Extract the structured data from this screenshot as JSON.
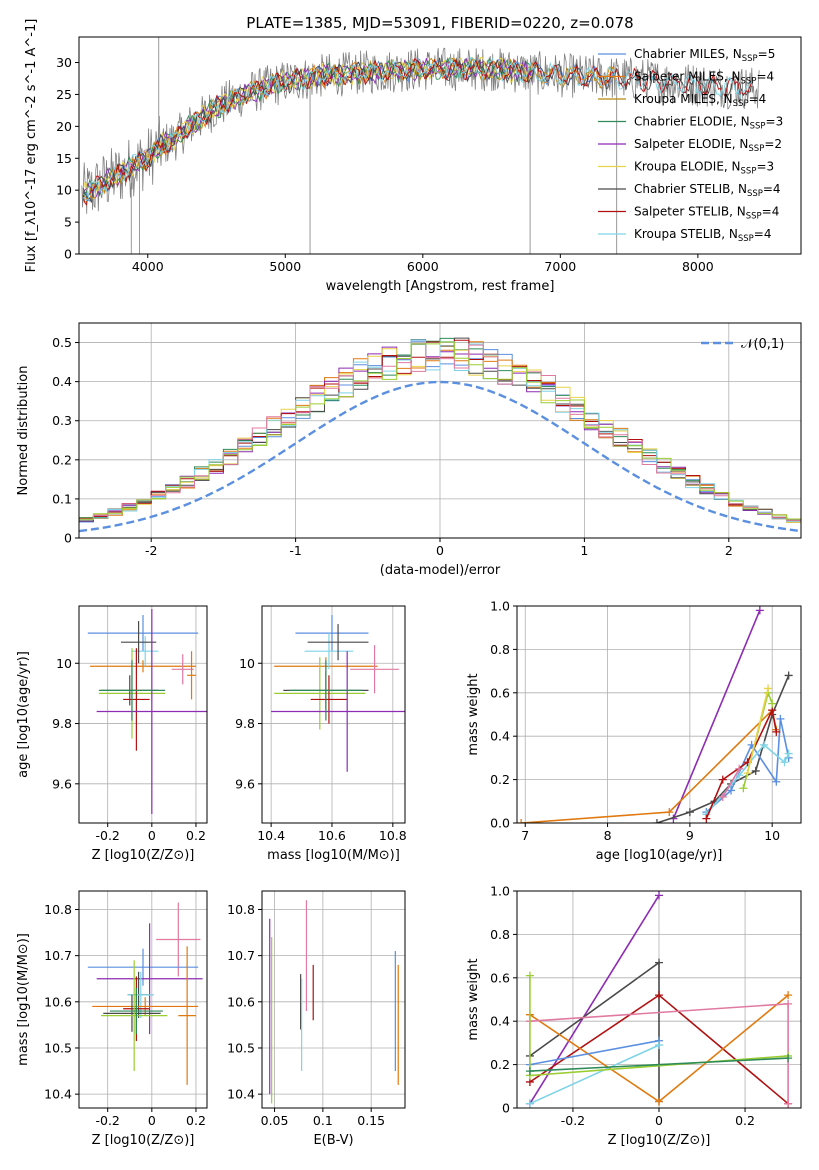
{
  "title": "PLATE=1385, MJD=53091, FIBERID=0220, z=0.078",
  "colors": {
    "Chabrier MILES": "#5b8fe0",
    "Salpeter MILES": "#e07a10",
    "Kroupa MILES": "#b8860b",
    "Chabrier ELODIE": "#2e8b57",
    "Salpeter ELODIE": "#8e2bb3",
    "Kroupa ELODIE": "#e8d24a",
    "Chabrier STELIB": "#4a4a4a",
    "Salpeter STELIB": "#b01010",
    "Kroupa STELIB": "#7fd3e6",
    "extra_pink": "#e07aa0",
    "extra_lime": "#9acd32",
    "data_gray": "#808080",
    "gaussian": "#5b8fe0"
  },
  "chart_data": [
    {
      "id": "spectrum",
      "type": "line",
      "title": "PLATE=1385, MJD=53091, FIBERID=0220, z=0.078",
      "xlabel": "wavelength [Angstrom, rest frame]",
      "ylabel": "Flux [f_λ10^-17 erg cm^-2 s^-1 A^-1]",
      "xlim": [
        3500,
        8750
      ],
      "ylim": [
        0,
        34
      ],
      "xticks": [
        4000,
        5000,
        6000,
        7000,
        8000
      ],
      "yticks": [
        0,
        5,
        10,
        15,
        20,
        25,
        30
      ],
      "grid": false,
      "legend_position": "upper right",
      "legend": [
        "Chabrier MILES, N_SSP=5",
        "Salpeter MILES, N_SSP=4",
        "Kroupa MILES, N_SSP=4",
        "Chabrier ELODIE, N_SSP=3",
        "Salpeter ELODIE, N_SSP=2",
        "Kroupa ELODIE, N_SSP=3",
        "Chabrier STELIB, N_SSP=4",
        "Salpeter STELIB, N_SSP=4",
        "Kroupa STELIB, N_SSP=4"
      ],
      "continuum_x": [
        3500,
        3600,
        3700,
        3800,
        3900,
        4000,
        4100,
        4200,
        4300,
        4400,
        4500,
        4700,
        5000,
        5300,
        5600,
        6000,
        6500,
        7000,
        7500,
        8000,
        8400
      ],
      "continuum_y": [
        9,
        10,
        11.5,
        12.5,
        14,
        15,
        17,
        18,
        20,
        21.5,
        23,
        25,
        27,
        28,
        28.5,
        29,
        29,
        28,
        27.5,
        26.5,
        26
      ]
    },
    {
      "id": "residuals",
      "type": "histogram",
      "xlabel": "(data-model)/error",
      "ylabel": "Normed distribution",
      "xlim": [
        -2.5,
        2.5
      ],
      "ylim": [
        0,
        0.55
      ],
      "xticks": [
        -2,
        -1,
        0,
        1,
        2
      ],
      "yticks": [
        0.0,
        0.1,
        0.2,
        0.3,
        0.4,
        0.5
      ],
      "grid": true,
      "legend_position": "upper right",
      "legend": [
        "𝒩(0,1)"
      ],
      "bin_width": 0.1,
      "approx_peak": 0.5
    },
    {
      "id": "age_vs_Z",
      "type": "scatter",
      "xlabel": "Z [log10(Z/Z⊙)]",
      "ylabel": "age  [log10(age/yr)]",
      "xlim": [
        -0.33,
        0.25
      ],
      "ylim": [
        9.47,
        10.19
      ],
      "xticks": [
        -0.2,
        0.0,
        0.2
      ],
      "yticks": [
        9.6,
        9.8,
        10.0
      ],
      "grid": true,
      "points": [
        {
          "series": "Chabrier MILES",
          "x": -0.04,
          "y": 10.1,
          "xerr": 0.25,
          "yerr": 0.06
        },
        {
          "series": "Salpeter MILES",
          "x": -0.04,
          "y": 9.99,
          "xerr": 0.24,
          "yerr": 0.02
        },
        {
          "series": "Kroupa STELIB",
          "x": -0.03,
          "y": 10.04,
          "xerr": 0.06,
          "yerr": 0.05
        },
        {
          "series": "Chabrier STELIB",
          "x": -0.06,
          "y": 10.07,
          "xerr": 0.08,
          "yerr": 0.07
        },
        {
          "series": "extra_pink",
          "x": 0.14,
          "y": 9.98,
          "xerr": 0.05,
          "yerr": 0.05
        },
        {
          "series": "Salpeter MILES",
          "x": 0.18,
          "y": 9.96,
          "xerr": 0.02,
          "yerr": 0.08
        },
        {
          "series": "extra_lime",
          "x": -0.09,
          "y": 9.9,
          "xerr": 0.15,
          "yerr": 0.15
        },
        {
          "series": "Chabrier STELIB",
          "x": -0.1,
          "y": 9.91,
          "xerr": 0.13,
          "yerr": 0.05
        },
        {
          "series": "Salpeter STELIB",
          "x": -0.07,
          "y": 9.88,
          "xerr": 0.06,
          "yerr": 0.17
        },
        {
          "series": "Salpeter ELODIE",
          "x": 0.0,
          "y": 9.84,
          "xerr": 0.25,
          "yerr": 0.34
        },
        {
          "series": "Chabrier ELODIE",
          "x": -0.09,
          "y": 9.91,
          "xerr": 0.15,
          "yerr": 0.1
        }
      ]
    },
    {
      "id": "age_vs_mass",
      "type": "scatter",
      "xlabel": "mass [log10(M/M⊙)]",
      "ylabel": "",
      "xlim": [
        10.37,
        10.84
      ],
      "ylim": [
        9.47,
        10.19
      ],
      "xticks": [
        10.4,
        10.6,
        10.8
      ],
      "yticks": [
        9.6,
        9.8,
        10.0
      ],
      "grid": true,
      "points": [
        {
          "series": "Chabrier MILES",
          "x": 10.6,
          "y": 10.1,
          "xerr": 0.12,
          "yerr": 0.06
        },
        {
          "series": "Salpeter MILES",
          "x": 10.58,
          "y": 9.99,
          "xerr": 0.17,
          "yerr": 0.03
        },
        {
          "series": "Kroupa STELIB",
          "x": 10.59,
          "y": 10.04,
          "xerr": 0.08,
          "yerr": 0.06
        },
        {
          "series": "Chabrier STELIB",
          "x": 10.62,
          "y": 10.07,
          "xerr": 0.1,
          "yerr": 0.06
        },
        {
          "series": "extra_pink",
          "x": 10.74,
          "y": 9.98,
          "xerr": 0.08,
          "yerr": 0.08
        },
        {
          "series": "extra_lime",
          "x": 10.56,
          "y": 9.9,
          "xerr": 0.15,
          "yerr": 0.12
        },
        {
          "series": "Chabrier STELIB",
          "x": 10.58,
          "y": 9.91,
          "xerr": 0.14,
          "yerr": 0.06
        },
        {
          "series": "Salpeter STELIB",
          "x": 10.59,
          "y": 9.88,
          "xerr": 0.06,
          "yerr": 0.08
        },
        {
          "series": "Salpeter ELODIE",
          "x": 10.65,
          "y": 9.84,
          "xerr": 0.25,
          "yerr": 0.2
        },
        {
          "series": "Chabrier ELODIE",
          "x": 10.58,
          "y": 9.91,
          "xerr": 0.12,
          "yerr": 0.1
        }
      ]
    },
    {
      "id": "weight_vs_age",
      "type": "line",
      "xlabel": "age  [log10(age/yr)]",
      "ylabel": "mass weight",
      "xlim": [
        6.9,
        10.35
      ],
      "ylim": [
        0,
        1.0
      ],
      "xticks": [
        7,
        8,
        9,
        10
      ],
      "yticks": [
        0.0,
        0.2,
        0.4,
        0.6,
        0.8,
        1.0
      ],
      "grid": true,
      "series": [
        {
          "name": "Salpeter ELODIE",
          "x": [
            8.8,
            9.85
          ],
          "y": [
            0.02,
            0.98
          ]
        },
        {
          "name": "Chabrier STELIB",
          "x": [
            8.6,
            9.0,
            9.3,
            9.5,
            9.8,
            10.0,
            10.2
          ],
          "y": [
            0.0,
            0.05,
            0.1,
            0.18,
            0.24,
            0.5,
            0.68
          ]
        },
        {
          "name": "Salpeter MILES",
          "x": [
            6.95,
            8.75,
            10.0,
            10.05
          ],
          "y": [
            0.0,
            0.05,
            0.52,
            0.43
          ]
        },
        {
          "name": "Chabrier MILES",
          "x": [
            9.2,
            9.5,
            9.75,
            10.05,
            10.1,
            10.2
          ],
          "y": [
            0.05,
            0.15,
            0.36,
            0.19,
            0.48,
            0.3
          ]
        },
        {
          "name": "Kroupa STELIB",
          "x": [
            9.2,
            9.6,
            9.9,
            10.15,
            10.2
          ],
          "y": [
            0.04,
            0.22,
            0.36,
            0.28,
            0.32
          ]
        },
        {
          "name": "Salpeter STELIB",
          "x": [
            9.2,
            9.4,
            9.7,
            10.0,
            10.05
          ],
          "y": [
            0.02,
            0.2,
            0.28,
            0.52,
            0.42
          ]
        },
        {
          "name": "extra_lime",
          "x": [
            9.65,
            9.95,
            10.0
          ],
          "y": [
            0.16,
            0.6,
            0.55
          ]
        },
        {
          "name": "Kroupa ELODIE",
          "x": [
            9.7,
            9.95
          ],
          "y": [
            0.23,
            0.62
          ]
        },
        {
          "name": "extra_pink",
          "x": [
            9.4,
            9.6
          ],
          "y": [
            0.12,
            0.25
          ]
        }
      ]
    },
    {
      "id": "mass_vs_Z",
      "type": "scatter",
      "xlabel": "Z [log10(Z/Z⊙)]",
      "ylabel": "mass [log10(M/M⊙)]",
      "xlim": [
        -0.33,
        0.25
      ],
      "ylim": [
        10.37,
        10.84
      ],
      "xticks": [
        -0.2,
        0.0,
        0.2
      ],
      "yticks": [
        10.4,
        10.5,
        10.6,
        10.7,
        10.8
      ],
      "grid": true,
      "points": [
        {
          "series": "extra_pink",
          "x": 0.12,
          "y": 10.735,
          "xerr": 0.1,
          "yerr": 0.08
        },
        {
          "series": "Chabrier MILES",
          "x": -0.04,
          "y": 10.675,
          "xerr": 0.25,
          "yerr": 0.04
        },
        {
          "series": "Salpeter ELODIE",
          "x": -0.01,
          "y": 10.65,
          "xerr": 0.24,
          "yerr": 0.12
        },
        {
          "series": "Chabrier STELIB",
          "x": -0.06,
          "y": 10.615,
          "xerr": 0.05,
          "yerr": 0.05
        },
        {
          "series": "Kroupa STELIB",
          "x": -0.05,
          "y": 10.615,
          "xerr": 0.06,
          "yerr": 0.05
        },
        {
          "series": "Salpeter MILES",
          "x": -0.03,
          "y": 10.59,
          "xerr": 0.24,
          "yerr": 0.02
        },
        {
          "series": "Salpeter STELIB",
          "x": -0.07,
          "y": 10.585,
          "xerr": 0.06,
          "yerr": 0.07
        },
        {
          "series": "Chabrier STELIB",
          "x": -0.09,
          "y": 10.575,
          "xerr": 0.13,
          "yerr": 0.04
        },
        {
          "series": "extra_lime",
          "x": -0.08,
          "y": 10.57,
          "xerr": 0.15,
          "yerr": 0.12
        },
        {
          "series": "Salpeter MILES",
          "x": 0.16,
          "y": 10.57,
          "xerr": 0.04,
          "yerr": 0.15
        },
        {
          "series": "Chabrier ELODIE",
          "x": -0.07,
          "y": 10.58,
          "xerr": 0.12,
          "yerr": 0.05
        }
      ]
    },
    {
      "id": "mass_vs_ebv",
      "type": "scatter",
      "xlabel": "E(B-V)",
      "ylabel": "",
      "xlim": [
        0.037,
        0.185
      ],
      "ylim": [
        10.37,
        10.84
      ],
      "xticks": [
        0.05,
        0.1,
        0.15
      ],
      "yticks": [
        10.4,
        10.5,
        10.6,
        10.7,
        10.8
      ],
      "grid": true,
      "points": [
        {
          "series": "Salpeter ELODIE",
          "x": 0.045,
          "y": 10.59,
          "yerr": 0.19
        },
        {
          "series": "extra_lime",
          "x": 0.047,
          "y": 10.56,
          "yerr": 0.18
        },
        {
          "series": "Chabrier STELIB",
          "x": 0.077,
          "y": 10.6,
          "yerr": 0.06
        },
        {
          "series": "Kroupa STELIB",
          "x": 0.078,
          "y": 10.55,
          "yerr": 0.1
        },
        {
          "series": "extra_pink",
          "x": 0.083,
          "y": 10.7,
          "yerr": 0.12
        },
        {
          "series": "Salpeter STELIB",
          "x": 0.09,
          "y": 10.62,
          "yerr": 0.06
        },
        {
          "series": "Chabrier MILES",
          "x": 0.175,
          "y": 10.58,
          "yerr": 0.13
        },
        {
          "series": "Salpeter MILES",
          "x": 0.178,
          "y": 10.55,
          "yerr": 0.13
        }
      ]
    },
    {
      "id": "weight_vs_Z",
      "type": "line",
      "xlabel": "Z [log10(Z/Z⊙)]",
      "ylabel": "mass weight",
      "xlim": [
        -0.33,
        0.33
      ],
      "ylim": [
        0,
        1.0
      ],
      "xticks": [
        -0.2,
        0.0,
        0.2
      ],
      "yticks": [
        0.0,
        0.2,
        0.4,
        0.6,
        0.8,
        1.0
      ],
      "grid": true,
      "series": [
        {
          "name": "Salpeter ELODIE",
          "x": [
            -0.3,
            0.0
          ],
          "y": [
            0.02,
            0.98
          ]
        },
        {
          "name": "Chabrier STELIB",
          "x": [
            -0.3,
            0.0,
            0.0
          ],
          "y": [
            0.24,
            0.67,
            0.03
          ]
        },
        {
          "name": "Salpeter STELIB",
          "x": [
            -0.3,
            0.0,
            0.3
          ],
          "y": [
            0.12,
            0.52,
            0.02
          ]
        },
        {
          "name": "Salpeter MILES",
          "x": [
            -0.3,
            0.0,
            0.3
          ],
          "y": [
            0.43,
            0.03,
            0.52
          ]
        },
        {
          "name": "extra_pink",
          "x": [
            -0.3,
            0.3,
            0.3
          ],
          "y": [
            0.4,
            0.48,
            0.02
          ]
        },
        {
          "name": "Chabrier MILES",
          "x": [
            -0.3,
            0.0
          ],
          "y": [
            0.2,
            0.31
          ]
        },
        {
          "name": "Kroupa STELIB",
          "x": [
            -0.3,
            0.0
          ],
          "y": [
            0.02,
            0.29
          ]
        },
        {
          "name": "extra_lime",
          "x": [
            -0.3,
            -0.3,
            0.3
          ],
          "y": [
            0.61,
            0.15,
            0.24
          ]
        },
        {
          "name": "Chabrier ELODIE",
          "x": [
            -0.3,
            0.3
          ],
          "y": [
            0.17,
            0.23
          ]
        }
      ]
    }
  ]
}
